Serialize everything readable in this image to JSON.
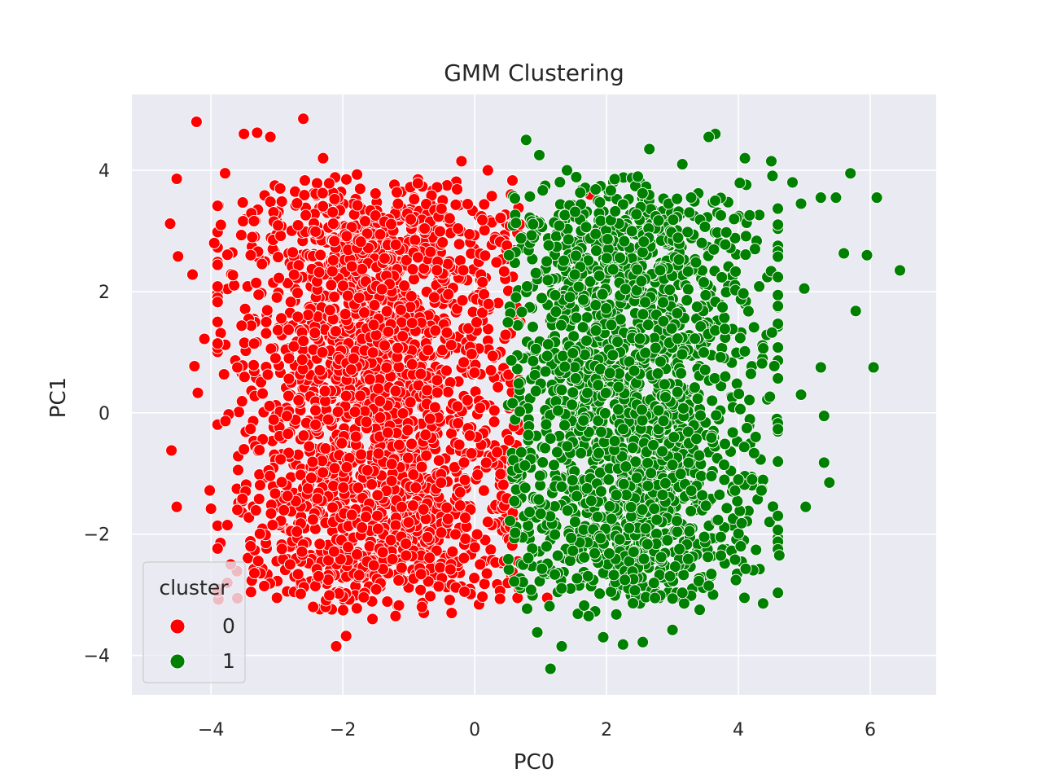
{
  "chart_data": {
    "type": "scatter",
    "title": "GMM Clustering",
    "xlabel": "PC0",
    "ylabel": "PC1",
    "xlim": [
      -5.2,
      7.0
    ],
    "ylim": [
      -4.65,
      5.25
    ],
    "x_ticks": [
      -4,
      -2,
      0,
      2,
      4,
      6
    ],
    "y_ticks": [
      -4,
      -2,
      0,
      2,
      4
    ],
    "x_tick_labels": [
      "−4",
      "−2",
      "0",
      "2",
      "4",
      "6"
    ],
    "y_tick_labels": [
      "−4",
      "−2",
      "0",
      "2",
      "4"
    ],
    "grid": true,
    "background": "#eaeaf2",
    "legend": {
      "title": "cluster",
      "placement": "lower-left",
      "entries": [
        {
          "label": "0",
          "color": "#ff0000"
        },
        {
          "label": "1",
          "color": "#008000"
        }
      ]
    },
    "series": [
      {
        "name": "0",
        "color": "#ff0000",
        "points": [
          [
            -4.6,
            -0.62
          ],
          [
            -4.52,
            -1.55
          ],
          [
            -4.62,
            3.12
          ],
          [
            -4.52,
            3.86
          ],
          [
            -4.28,
            2.28
          ],
          [
            -4.22,
            4.8
          ],
          [
            -4.2,
            0.33
          ],
          [
            -4.25,
            0.77
          ],
          [
            -4.1,
            1.22
          ],
          [
            -4.5,
            2.58
          ],
          [
            -4.02,
            -1.28
          ],
          [
            -4.0,
            -1.58
          ],
          [
            -3.95,
            2.8
          ],
          [
            -3.85,
            3.1
          ],
          [
            -3.9,
            1.5
          ],
          [
            -3.75,
            -1.85
          ],
          [
            -3.7,
            -2.5
          ],
          [
            -3.6,
            0.75
          ],
          [
            -3.5,
            4.6
          ],
          [
            -3.3,
            4.62
          ],
          [
            -3.1,
            4.55
          ],
          [
            -2.6,
            4.85
          ],
          [
            -2.95,
            3.7
          ],
          [
            -2.3,
            4.2
          ],
          [
            -2.1,
            -3.85
          ],
          [
            -1.95,
            -3.68
          ],
          [
            -1.55,
            -3.4
          ],
          [
            -1.2,
            -3.35
          ],
          [
            -0.8,
            -3.2
          ],
          [
            -0.35,
            -3.3
          ],
          [
            -0.2,
            4.15
          ],
          [
            0.2,
            4.0
          ],
          [
            0.55,
            3.6
          ],
          [
            1.75,
            3.6
          ],
          [
            1.1,
            -3.05
          ],
          [
            0.65,
            -3.05
          ],
          [
            -3.0,
            -3.05
          ],
          [
            -2.45,
            -3.2
          ],
          [
            -2.8,
            -2.5
          ],
          [
            -3.4,
            -2.2
          ],
          [
            -3.6,
            -1.6
          ],
          [
            -3.5,
            -0.6
          ]
        ],
        "cloud": {
          "x_range": [
            -3.6,
            0.7
          ],
          "y_range": [
            -3.4,
            4.0
          ],
          "count": 2200,
          "seed": 17
        }
      },
      {
        "name": "1",
        "color": "#008000",
        "points": [
          [
            6.45,
            2.35
          ],
          [
            6.1,
            3.55
          ],
          [
            5.95,
            2.6
          ],
          [
            5.78,
            1.68
          ],
          [
            5.7,
            3.95
          ],
          [
            5.6,
            2.63
          ],
          [
            6.05,
            0.75
          ],
          [
            5.25,
            0.75
          ],
          [
            5.0,
            2.05
          ],
          [
            4.95,
            0.3
          ],
          [
            5.3,
            -0.05
          ],
          [
            5.3,
            -0.82
          ],
          [
            5.02,
            -1.55
          ],
          [
            5.38,
            -1.15
          ],
          [
            4.6,
            -2.25
          ],
          [
            4.62,
            -2.35
          ],
          [
            4.05,
            -1.82
          ],
          [
            4.35,
            -1.28
          ],
          [
            4.0,
            -1.1
          ],
          [
            3.95,
            -2.42
          ],
          [
            3.55,
            -2.85
          ],
          [
            3.0,
            -3.58
          ],
          [
            2.55,
            -3.78
          ],
          [
            2.25,
            -3.82
          ],
          [
            1.95,
            -3.7
          ],
          [
            1.32,
            -3.85
          ],
          [
            1.15,
            -4.22
          ],
          [
            0.95,
            -3.62
          ],
          [
            0.78,
            4.5
          ],
          [
            0.98,
            4.25
          ],
          [
            1.4,
            4.0
          ],
          [
            3.65,
            4.6
          ],
          [
            3.55,
            4.55
          ],
          [
            3.15,
            4.1
          ],
          [
            2.65,
            4.35
          ],
          [
            4.1,
            4.2
          ],
          [
            4.5,
            4.15
          ],
          [
            4.82,
            3.8
          ],
          [
            5.25,
            3.55
          ],
          [
            5.48,
            3.55
          ],
          [
            4.95,
            3.45
          ],
          [
            3.8,
            0.6
          ]
        ],
        "cloud": {
          "x_range": [
            0.4,
            4.3
          ],
          "y_range": [
            -3.4,
            4.0
          ],
          "count": 1900,
          "seed": 41
        }
      }
    ]
  }
}
